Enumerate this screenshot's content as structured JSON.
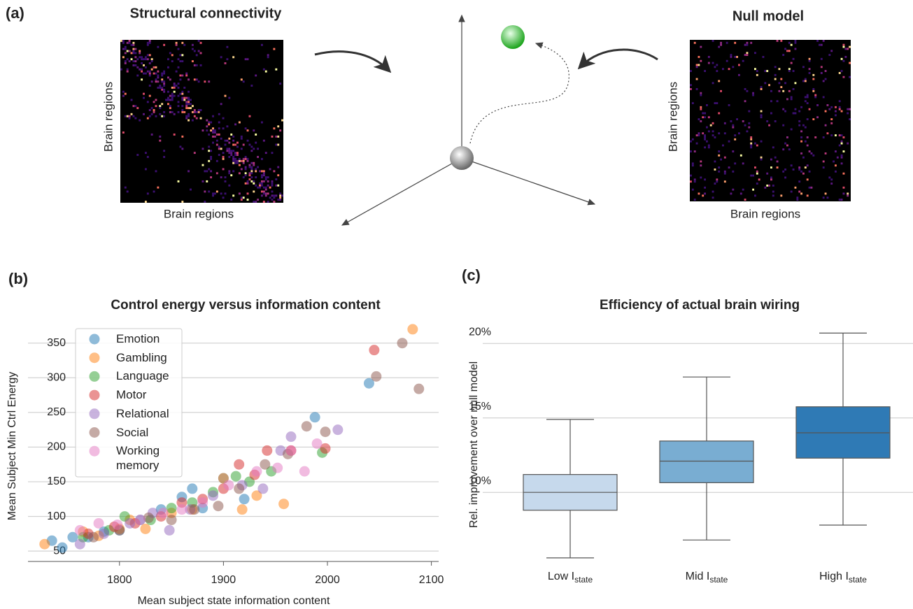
{
  "figure_a": {
    "label": "(a)",
    "left_matrix": {
      "title": "Structural connectivity",
      "xlabel": "Brain regions",
      "ylabel": "Brain regions"
    },
    "right_matrix": {
      "title": "Null model",
      "xlabel": "Brain regions",
      "ylabel": "Brain regions"
    }
  },
  "chart_data": [
    {
      "type": "scatter",
      "panel_label": "(b)",
      "title": "Control energy versus information content",
      "xlabel": "Mean subject state information content",
      "ylabel": "Mean Subject Min Ctrl Energy",
      "xlim": [
        1712,
        2107
      ],
      "xticks": [
        1800,
        1900,
        2000,
        2100
      ],
      "ylim": [
        35,
        381
      ],
      "yticks": [
        50,
        100,
        150,
        200,
        250,
        300,
        350
      ],
      "grid": true,
      "legend": "upper-left",
      "series": [
        {
          "name": "Emotion",
          "color": "#1f77b4",
          "x": [
            1735,
            1745,
            1755,
            1770,
            1785,
            1800,
            1820,
            1840,
            1860,
            1870,
            1880,
            1900,
            1920,
            1988,
            2040
          ],
          "values": [
            65,
            55,
            70,
            70,
            78,
            80,
            95,
            110,
            128,
            140,
            112,
            155,
            125,
            243,
            292
          ]
        },
        {
          "name": "Gambling",
          "color": "#ff7f0e",
          "x": [
            1728,
            1765,
            1780,
            1800,
            1810,
            1825,
            1850,
            1870,
            1900,
            1918,
            1932,
            1958,
            2082
          ],
          "values": [
            60,
            78,
            72,
            82,
            95,
            82,
            105,
            110,
            155,
            110,
            130,
            118,
            370
          ]
        },
        {
          "name": "Language",
          "color": "#2ca02c",
          "x": [
            1765,
            1790,
            1805,
            1830,
            1850,
            1870,
            1890,
            1912,
            1925,
            1946,
            1995
          ],
          "values": [
            70,
            80,
            100,
            95,
            112,
            120,
            135,
            158,
            150,
            165,
            192
          ]
        },
        {
          "name": "Motor",
          "color": "#d62728",
          "x": [
            1770,
            1795,
            1815,
            1840,
            1860,
            1880,
            1900,
            1915,
            1930,
            1942,
            1965,
            1998,
            2045
          ],
          "values": [
            75,
            85,
            90,
            100,
            120,
            125,
            140,
            175,
            160,
            195,
            195,
            198,
            340
          ]
        },
        {
          "name": "Relational",
          "color": "#9467bd",
          "x": [
            1762,
            1785,
            1810,
            1832,
            1848,
            1868,
            1890,
            1918,
            1938,
            1955,
            1965,
            2010
          ],
          "values": [
            60,
            75,
            90,
            105,
            80,
            110,
            130,
            145,
            140,
            195,
            215,
            225
          ]
        },
        {
          "name": "Social",
          "color": "#8c564b",
          "x": [
            1775,
            1800,
            1828,
            1850,
            1872,
            1895,
            1915,
            1940,
            1962,
            1980,
            1998,
            2047,
            2072,
            2088
          ],
          "values": [
            70,
            80,
            98,
            95,
            110,
            115,
            140,
            175,
            190,
            230,
            222,
            302,
            350,
            284
          ]
        },
        {
          "name": "Working memory",
          "color": "#e377c2",
          "x": [
            1762,
            1780,
            1798,
            1820,
            1842,
            1860,
            1880,
            1905,
            1932,
            1952,
            1965,
            1978,
            1990
          ],
          "values": [
            80,
            90,
            88,
            95,
            105,
            110,
            120,
            145,
            165,
            170,
            195,
            165,
            205
          ]
        }
      ]
    },
    {
      "type": "box",
      "panel_label": "(c)",
      "title": "Efficiency of actual brain wiring",
      "ylabel": "Rel. improvement over null model",
      "categories": [
        "Low I",
        "Mid I",
        "High I"
      ],
      "category_subscripts": [
        "state",
        "state",
        "state"
      ],
      "colors": [
        "#c6d9ec",
        "#79add2",
        "#2f7ab5"
      ],
      "whisker_low": [
        5.6,
        6.8,
        7.8
      ],
      "q1": [
        8.8,
        10.65,
        12.3
      ],
      "median": [
        10.0,
        12.1,
        14.0
      ],
      "q3": [
        11.2,
        13.45,
        15.75
      ],
      "whisker_high": [
        14.9,
        17.75,
        20.7
      ],
      "ylim": [
        5.5,
        21
      ],
      "yticks": [
        {
          "value": 10,
          "label": "10%"
        },
        {
          "value": 15,
          "label": "15%"
        },
        {
          "value": 20,
          "label": "20%"
        }
      ],
      "grid": true
    }
  ]
}
